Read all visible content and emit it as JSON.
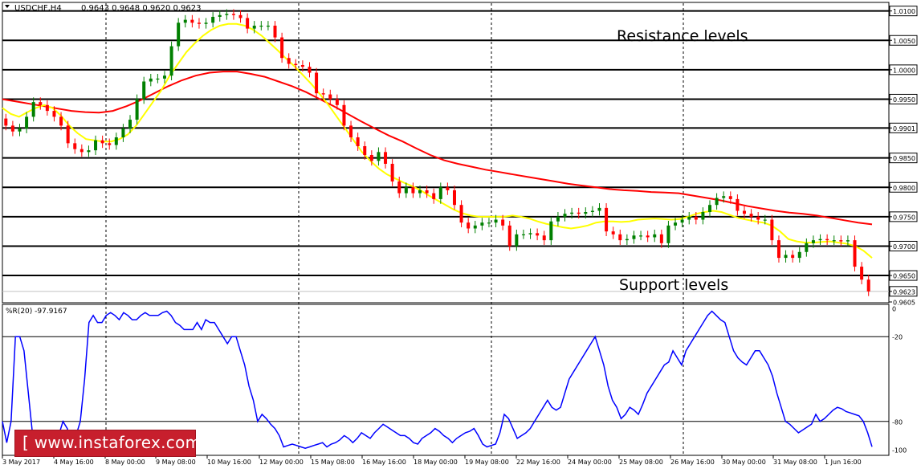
{
  "chart_data": [
    {
      "type": "candlestick",
      "header": {
        "symbol": "USDCHF,H4",
        "ohlc": "0.9643 0.9648 0.9620 0.9623"
      },
      "ylim": [
        0.9605,
        1.0105
      ],
      "price_axis_labels": [
        "1.0100",
        "1.0050",
        "1.0000",
        "0.9950",
        "0.9901",
        "0.9850",
        "0.9800",
        "0.9750",
        "0.9700",
        "0.9650",
        "0.9623",
        "0.9605"
      ],
      "horizontal_levels": [
        1.01,
        1.005,
        1.0,
        0.995,
        0.9901,
        0.985,
        0.98,
        0.975,
        0.97,
        0.965
      ],
      "current_price": 0.9623,
      "annotations": {
        "resistance": "Resistance levels",
        "support": "Support levels"
      },
      "x_tick_labels": [
        "3 May 2017",
        "4 May 16:00",
        "8 May 00:00",
        "9 May 08:00",
        "10 May 16:00",
        "12 May 00:00",
        "15 May 08:00",
        "16 May 16:00",
        "18 May 00:00",
        "19 May 08:00",
        "22 May 16:00",
        "24 May 00:00",
        "25 May 08:00",
        "26 May 16:00",
        "30 May 00:00",
        "31 May 08:00",
        "1 Jun 16:00"
      ],
      "colors": {
        "bull": "#008000",
        "bear": "#ff0000",
        "fast_ma": "#ffff00",
        "slow_ma": "#ff0000",
        "level_line": "#000000"
      },
      "candles_close": [
        0.9905,
        0.9895,
        0.99,
        0.992,
        0.9945,
        0.994,
        0.993,
        0.992,
        0.9905,
        0.9875,
        0.9865,
        0.986,
        0.9863,
        0.988,
        0.9875,
        0.9872,
        0.9885,
        0.99,
        0.9915,
        0.995,
        0.998,
        0.9985,
        0.9985,
        0.999,
        1.004,
        1.008,
        1.0085,
        1.008,
        1.0078,
        1.008,
        1.009,
        1.0093,
        1.0095,
        1.0093,
        1.0088,
        1.007,
        1.0075,
        1.0075,
        1.0075,
        1.0055,
        1.002,
        1.001,
        1.0008,
        1.0005,
        0.9995,
        0.996,
        0.9958,
        0.995,
        0.994,
        0.9905,
        0.9885,
        0.987,
        0.9855,
        0.9845,
        0.986,
        0.984,
        0.981,
        0.979,
        0.98,
        0.979,
        0.9795,
        0.979,
        0.978,
        0.98,
        0.9795,
        0.977,
        0.974,
        0.973,
        0.9735,
        0.974,
        0.974,
        0.9745,
        0.9735,
        0.97,
        0.972,
        0.972,
        0.9722,
        0.9718,
        0.971,
        0.9742,
        0.975,
        0.9755,
        0.9757,
        0.9755,
        0.9758,
        0.976,
        0.9765,
        0.9725,
        0.972,
        0.971,
        0.9712,
        0.9718,
        0.9718,
        0.9715,
        0.972,
        0.9705,
        0.9735,
        0.974,
        0.9745,
        0.975,
        0.9745,
        0.9758,
        0.977,
        0.9782,
        0.9785,
        0.978,
        0.976,
        0.9755,
        0.975,
        0.9745,
        0.9745,
        0.971,
        0.968,
        0.9685,
        0.968,
        0.969,
        0.9705,
        0.971,
        0.9712,
        0.971,
        0.971,
        0.9708,
        0.971,
        0.9665,
        0.9643,
        0.9623
      ],
      "fast_ma": [
        0.9935,
        0.9925,
        0.992,
        0.9928,
        0.9935,
        0.994,
        0.9935,
        0.9922,
        0.9905,
        0.9892,
        0.9882,
        0.988,
        0.9878,
        0.9878,
        0.9882,
        0.989,
        0.9905,
        0.9925,
        0.9945,
        0.9965,
        0.999,
        1.001,
        1.003,
        1.0045,
        1.0058,
        1.0068,
        1.0075,
        1.0078,
        1.0078,
        1.0075,
        1.0068,
        1.0058,
        1.0045,
        1.0032,
        1.0018,
        1.0005,
        0.999,
        0.9975,
        0.9958,
        0.994,
        0.992,
        0.99,
        0.988,
        0.986,
        0.9845,
        0.9832,
        0.9822,
        0.9815,
        0.9808,
        0.9802,
        0.9795,
        0.9786,
        0.9778,
        0.977,
        0.9762,
        0.9756,
        0.9752,
        0.975,
        0.975,
        0.975,
        0.975,
        0.9752,
        0.975,
        0.9747,
        0.9742,
        0.9738,
        0.9735,
        0.9732,
        0.973,
        0.9732,
        0.9735,
        0.974,
        0.9742,
        0.9742,
        0.9741,
        0.9742,
        0.9745,
        0.9746,
        0.9747,
        0.9746,
        0.9745,
        0.9746,
        0.975,
        0.9755,
        0.9758,
        0.976,
        0.9758,
        0.9753,
        0.9748,
        0.9745,
        0.9742,
        0.974,
        0.9735,
        0.9725,
        0.9712,
        0.9708,
        0.9706,
        0.9706,
        0.9707,
        0.9708,
        0.9706,
        0.9704,
        0.97,
        0.9692,
        0.968
      ],
      "slow_ma": [
        0.995,
        0.9946,
        0.9942,
        0.9938,
        0.9934,
        0.993,
        0.9928,
        0.9927,
        0.993,
        0.9938,
        0.9948,
        0.996,
        0.9972,
        0.9982,
        0.999,
        0.9995,
        0.9997,
        0.9997,
        0.9993,
        0.9988,
        0.998,
        0.9972,
        0.9962,
        0.995,
        0.9938,
        0.9925,
        0.9912,
        0.99,
        0.9888,
        0.9878,
        0.9866,
        0.9855,
        0.9846,
        0.984,
        0.9835,
        0.983,
        0.9826,
        0.9822,
        0.9818,
        0.9814,
        0.981,
        0.9806,
        0.9803,
        0.98,
        0.9797,
        0.9795,
        0.9794,
        0.9792,
        0.9791,
        0.979,
        0.9786,
        0.9782,
        0.9778,
        0.9773,
        0.9768,
        0.9764,
        0.976,
        0.9757,
        0.9755,
        0.9752,
        0.9748,
        0.9744,
        0.974,
        0.9737
      ],
      "series": [
        {
          "name": "Close",
          "values_ref": "candles_close"
        },
        {
          "name": "Fast MA",
          "values_ref": "fast_ma"
        },
        {
          "name": "Slow MA",
          "values_ref": "slow_ma"
        }
      ]
    },
    {
      "type": "line",
      "title": "%R(20) -97.9167",
      "ylim": [
        -100,
        0
      ],
      "axis_labels": [
        "0",
        "-20",
        "-80",
        "-100"
      ],
      "levels": [
        -20,
        -80
      ],
      "colors": {
        "line": "#0000ff"
      },
      "values": [
        -80,
        -95,
        -80,
        -20,
        -20,
        -30,
        -60,
        -90,
        -90,
        -98,
        -100,
        -98,
        -95,
        -90,
        -80,
        -85,
        -95,
        -90,
        -80,
        -50,
        -10,
        -5,
        -10,
        -10,
        -5,
        -3,
        -5,
        -8,
        -3,
        -5,
        -8,
        -8,
        -5,
        -3,
        -5,
        -5,
        -5,
        -3,
        -2,
        -5,
        -10,
        -12,
        -15,
        -15,
        -15,
        -10,
        -15,
        -8,
        -10,
        -10,
        -15,
        -20,
        -25,
        -20,
        -20,
        -30,
        -40,
        -55,
        -65,
        -80,
        -75,
        -78,
        -82,
        -85,
        -90,
        -98,
        -97,
        -96,
        -97,
        -98,
        -99,
        -98,
        -97,
        -96,
        -95,
        -98,
        -96,
        -95,
        -93,
        -90,
        -92,
        -95,
        -92,
        -88,
        -90,
        -92,
        -88,
        -85,
        -82,
        -84,
        -86,
        -88,
        -90,
        -90,
        -92,
        -95,
        -96,
        -92,
        -90,
        -88,
        -85,
        -87,
        -90,
        -92,
        -95,
        -92,
        -90,
        -88,
        -87,
        -85,
        -90,
        -96,
        -98,
        -97,
        -96,
        -88,
        -75,
        -78,
        -85,
        -92,
        -90,
        -88,
        -85,
        -80,
        -75,
        -70,
        -65,
        -70,
        -72,
        -70,
        -60,
        -50,
        -45,
        -40,
        -35,
        -30,
        -25,
        -20,
        -30,
        -40,
        -55,
        -65,
        -70,
        -78,
        -75,
        -70,
        -72,
        -75,
        -68,
        -60,
        -55,
        -50,
        -45,
        -40,
        -38,
        -30,
        -35,
        -40,
        -30,
        -25,
        -20,
        -15,
        -10,
        -5,
        -2,
        -5,
        -8,
        -10,
        -20,
        -30,
        -35,
        -38,
        -40,
        -35,
        -30,
        -30,
        -35,
        -40,
        -48,
        -60,
        -70,
        -80,
        -82,
        -85,
        -88,
        -86,
        -84,
        -82,
        -75,
        -80,
        -78,
        -75,
        -72,
        -70,
        -71,
        -73,
        -74,
        -75,
        -76,
        -80,
        -88,
        -97.9167
      ]
    }
  ],
  "watermark": {
    "text": "[  www.instaforex.com ]"
  }
}
